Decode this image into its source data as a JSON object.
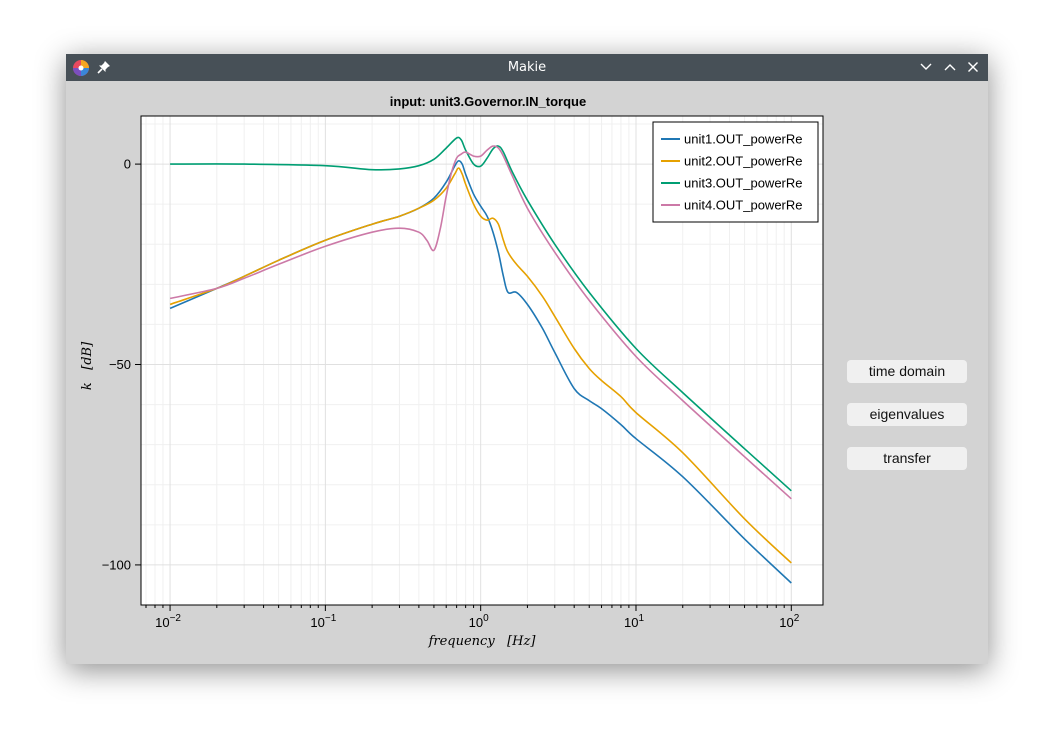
{
  "window": {
    "title": "Makie",
    "app_icon": "makie-logo-icon",
    "pin_icon": "pin-icon",
    "controls": [
      "minimize-icon",
      "maximize-icon",
      "close-icon"
    ]
  },
  "buttons": {
    "time_domain": "time domain",
    "eigenvalues": "eigenvalues",
    "transfer": "transfer"
  },
  "chart_data": {
    "type": "line",
    "title": "input: unit3.Governor.IN_torque",
    "xlabel": "frequency   [Hz]",
    "ylabel": "k   [dB]",
    "xscale": "log10",
    "xlim": [
      0.0065,
      160
    ],
    "ylim": [
      -110,
      12
    ],
    "xticks": [
      {
        "value": 0.01,
        "base": "10",
        "exp": "−2"
      },
      {
        "value": 0.1,
        "base": "10",
        "exp": "−1"
      },
      {
        "value": 1,
        "base": "10",
        "exp": "0"
      },
      {
        "value": 10,
        "base": "10",
        "exp": "1"
      },
      {
        "value": 100,
        "base": "10",
        "exp": "2"
      }
    ],
    "yticks": [
      {
        "value": 0,
        "label": "0"
      },
      {
        "value": -50,
        "label": "−50"
      },
      {
        "value": -100,
        "label": "−100"
      }
    ],
    "yminor": [
      10,
      -10,
      -20,
      -30,
      -40,
      -60,
      -70,
      -80,
      -90,
      -110
    ],
    "grid": true,
    "legend_position": "top-right",
    "series": [
      {
        "name": "unit1.OUT_powerRe",
        "color": "#1f77b4",
        "x": [
          0.01,
          0.02,
          0.03,
          0.05,
          0.1,
          0.2,
          0.3,
          0.4,
          0.5,
          0.6,
          0.68,
          0.72,
          0.76,
          0.8,
          0.9,
          1.0,
          1.1,
          1.2,
          1.3,
          1.4,
          1.5,
          1.7,
          2.0,
          2.5,
          3.0,
          4.0,
          5.0,
          6.0,
          8.0,
          10,
          20,
          50,
          100
        ],
        "y": [
          -36,
          -31,
          -28,
          -24,
          -19,
          -15,
          -13,
          -11,
          -8.5,
          -4.5,
          -0.5,
          0.8,
          0,
          -2.5,
          -7.5,
          -10.5,
          -13,
          -17,
          -22,
          -28,
          -32,
          -32,
          -35,
          -41,
          -47,
          -56,
          -59,
          -61,
          -65,
          -68.5,
          -78,
          -93.5,
          -104.5
        ]
      },
      {
        "name": "unit2.OUT_powerRe",
        "color": "#e6a100",
        "x": [
          0.01,
          0.02,
          0.03,
          0.05,
          0.1,
          0.2,
          0.3,
          0.4,
          0.5,
          0.6,
          0.68,
          0.72,
          0.76,
          0.8,
          0.9,
          1.0,
          1.1,
          1.2,
          1.3,
          1.4,
          1.5,
          1.7,
          2.0,
          2.5,
          3.0,
          4.0,
          5.0,
          6.0,
          8.0,
          10,
          20,
          50,
          100
        ],
        "y": [
          -35,
          -31,
          -28,
          -24,
          -19,
          -15,
          -13,
          -11,
          -9,
          -6,
          -2.5,
          -1,
          -2.5,
          -5,
          -10,
          -13,
          -14,
          -13.5,
          -15,
          -19,
          -22,
          -25,
          -28,
          -33,
          -38,
          -46,
          -51,
          -54,
          -58,
          -62,
          -72,
          -88.5,
          -99.5
        ]
      },
      {
        "name": "unit3.OUT_powerRe",
        "color": "#009e73",
        "x": [
          0.01,
          0.03,
          0.1,
          0.2,
          0.3,
          0.4,
          0.5,
          0.6,
          0.7,
          0.75,
          0.8,
          0.9,
          1.0,
          1.1,
          1.2,
          1.3,
          1.4,
          1.6,
          2.0,
          3.0,
          5.0,
          10,
          20,
          50,
          100
        ],
        "y": [
          0,
          0,
          -0.4,
          -1.4,
          -1.2,
          -0.4,
          1.2,
          4,
          6.5,
          6,
          3.5,
          0,
          -0.5,
          1.5,
          3.8,
          4.5,
          3,
          -2,
          -9,
          -20,
          -32,
          -46,
          -57,
          -71,
          -81.5
        ]
      },
      {
        "name": "unit4.OUT_powerRe",
        "color": "#cc79a7",
        "x": [
          0.01,
          0.02,
          0.03,
          0.05,
          0.1,
          0.2,
          0.3,
          0.4,
          0.45,
          0.5,
          0.55,
          0.6,
          0.65,
          0.7,
          0.75,
          0.8,
          0.9,
          1.0,
          1.1,
          1.2,
          1.3,
          1.4,
          1.6,
          2.0,
          3.0,
          5.0,
          10,
          20,
          50,
          100
        ],
        "y": [
          -33.5,
          -31,
          -28.5,
          -25,
          -20.5,
          -17,
          -16,
          -17,
          -19,
          -21.5,
          -16,
          -8,
          -2,
          1.5,
          2.5,
          3,
          2,
          2,
          3.5,
          4.5,
          4,
          2,
          -3,
          -11,
          -22,
          -34,
          -48,
          -59,
          -73,
          -83.5
        ]
      }
    ]
  }
}
